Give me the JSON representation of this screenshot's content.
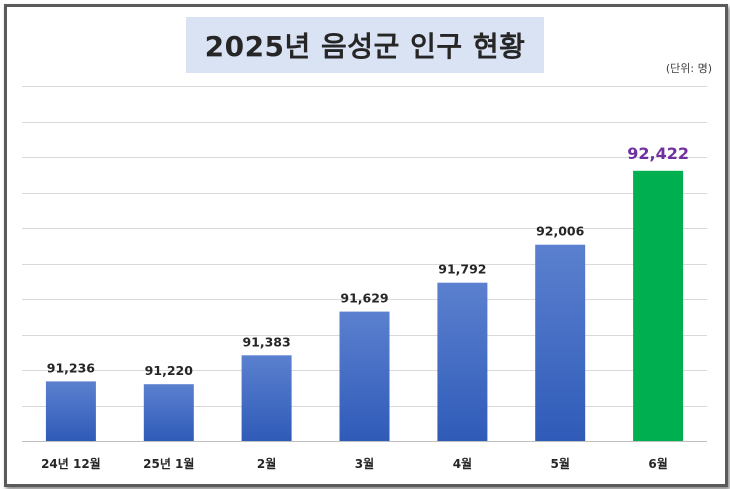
{
  "title": "2025년 음성군 인구 현황",
  "unit": "(단위: 명)",
  "colors": {
    "bar_top": "#5b80cf",
    "bar_bottom": "#2f5bb8",
    "highlight": "#00b050",
    "highlight_label": "#7030a0",
    "label": "#262626",
    "grid": "#d9d9d9"
  },
  "chart_data": {
    "type": "bar",
    "categories": [
      "24년 12월",
      "25년 1월",
      "2월",
      "3월",
      "4월",
      "5월",
      "6월"
    ],
    "values": [
      91236,
      91220,
      91383,
      91629,
      91792,
      92006,
      92422
    ],
    "data_labels": [
      "91,236",
      "91,220",
      "91,383",
      "91,629",
      "91,792",
      "92,006",
      "92,422"
    ],
    "highlight_index": 6,
    "ylim": [
      90900,
      92900
    ],
    "gridline_step": 200,
    "grid": true,
    "legend": "none",
    "xlabel": "",
    "ylabel": ""
  }
}
